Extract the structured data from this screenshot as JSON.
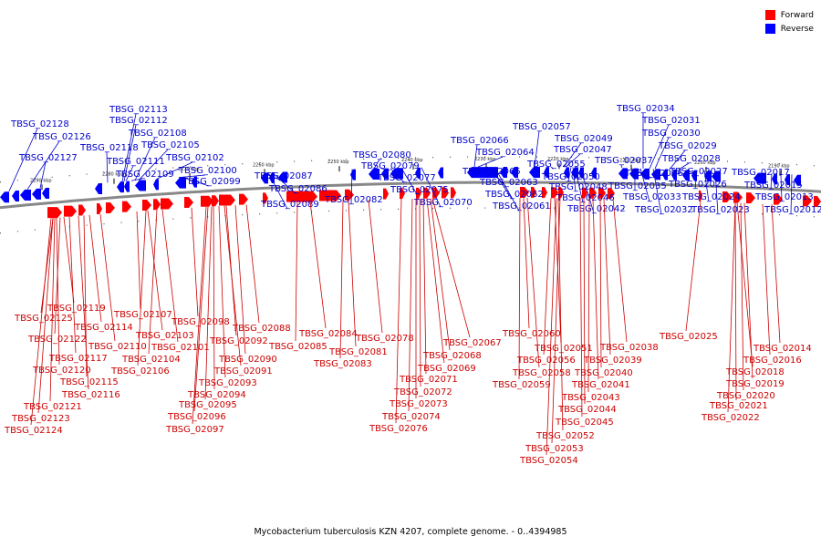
{
  "legend": {
    "forward": {
      "label": "Forward",
      "color": "#ff0000"
    },
    "reverse": {
      "label": "Reverse",
      "color": "#0000ff"
    }
  },
  "caption": "Mycobacterium tuberculosis KZN 4207, complete genome. - 0..4394985",
  "ticks": [
    "2290 kbp",
    "2280 kbp",
    "2270 kbp",
    "2260 kbp",
    "2250 kbp",
    "2240 kbp",
    "2230 kbp",
    "2220 kbp",
    "2210 kbp",
    "2200 kbp",
    "2190 kbp"
  ],
  "reverse_labels": [
    "TBSG_02128",
    "TBSG_02126",
    "TBSG_02127",
    "TBSG_02118",
    "TBSG_02113",
    "TBSG_02112",
    "TBSG_02108",
    "TBSG_02105",
    "TBSG_02111",
    "TBSG_02109",
    "TBSG_02102",
    "TBSG_02100",
    "TBSG_02099",
    "TBSG_02087",
    "TBSG_02086",
    "TBSG_02089",
    "TBSG_02080",
    "TBSG_02079",
    "TBSG_02082",
    "TBSG_02077",
    "TBSG_02075",
    "TBSG_02070",
    "TBSG_02066",
    "TBSG_02064",
    "TBSG_02065",
    "TBSG_02063",
    "TBSG_02062",
    "TBSG_02061",
    "TBSG_02057",
    "TBSG_02049",
    "TBSG_02047",
    "TBSG_02055",
    "TBSG_02050",
    "TBSG_02048",
    "TBSG_02046",
    "TBSG_02042",
    "TBSG_02034",
    "TBSG_02031",
    "TBSG_02030",
    "TBSG_02029",
    "TBSG_02037",
    "TBSG_02028",
    "TBSG_02036",
    "TBSG_02027",
    "TBSG_02035",
    "TBSG_02026",
    "TBSG_02033",
    "TBSG_02024",
    "TBSG_02032",
    "TBSG_02023",
    "TBSG_02017",
    "TBSG_02015",
    "TBSG_02013",
    "TBSG_02012"
  ],
  "forward_labels": [
    "TBSG_02119",
    "TBSG_02125",
    "TBSG_02114",
    "TBSG_02122",
    "TBSG_02110",
    "TBSG_02117",
    "TBSG_02120",
    "TBSG_02115",
    "TBSG_02116",
    "TBSG_02121",
    "TBSG_02123",
    "TBSG_02124",
    "TBSG_02107",
    "TBSG_02103",
    "TBSG_02101",
    "TBSG_02104",
    "TBSG_02106",
    "TBSG_02098",
    "TBSG_02092",
    "TBSG_02090",
    "TBSG_02091",
    "TBSG_02093",
    "TBSG_02094",
    "TBSG_02095",
    "TBSG_02096",
    "TBSG_02097",
    "TBSG_02088",
    "TBSG_02084",
    "TBSG_02085",
    "TBSG_02081",
    "TBSG_02083",
    "TBSG_02078",
    "TBSG_02067",
    "TBSG_02068",
    "TBSG_02069",
    "TBSG_02071",
    "TBSG_02072",
    "TBSG_02073",
    "TBSG_02074",
    "TBSG_02076",
    "TBSG_02060",
    "TBSG_02051",
    "TBSG_02056",
    "TBSG_02058",
    "TBSG_02059",
    "TBSG_02038",
    "TBSG_02039",
    "TBSG_02040",
    "TBSG_02041",
    "TBSG_02043",
    "TBSG_02044",
    "TBSG_02045",
    "TBSG_02052",
    "TBSG_02053",
    "TBSG_02054",
    "TBSG_02025",
    "TBSG_02014",
    "TBSG_02016",
    "TBSG_02018",
    "TBSG_02019",
    "TBSG_02020",
    "TBSG_02021",
    "TBSG_02022"
  ]
}
